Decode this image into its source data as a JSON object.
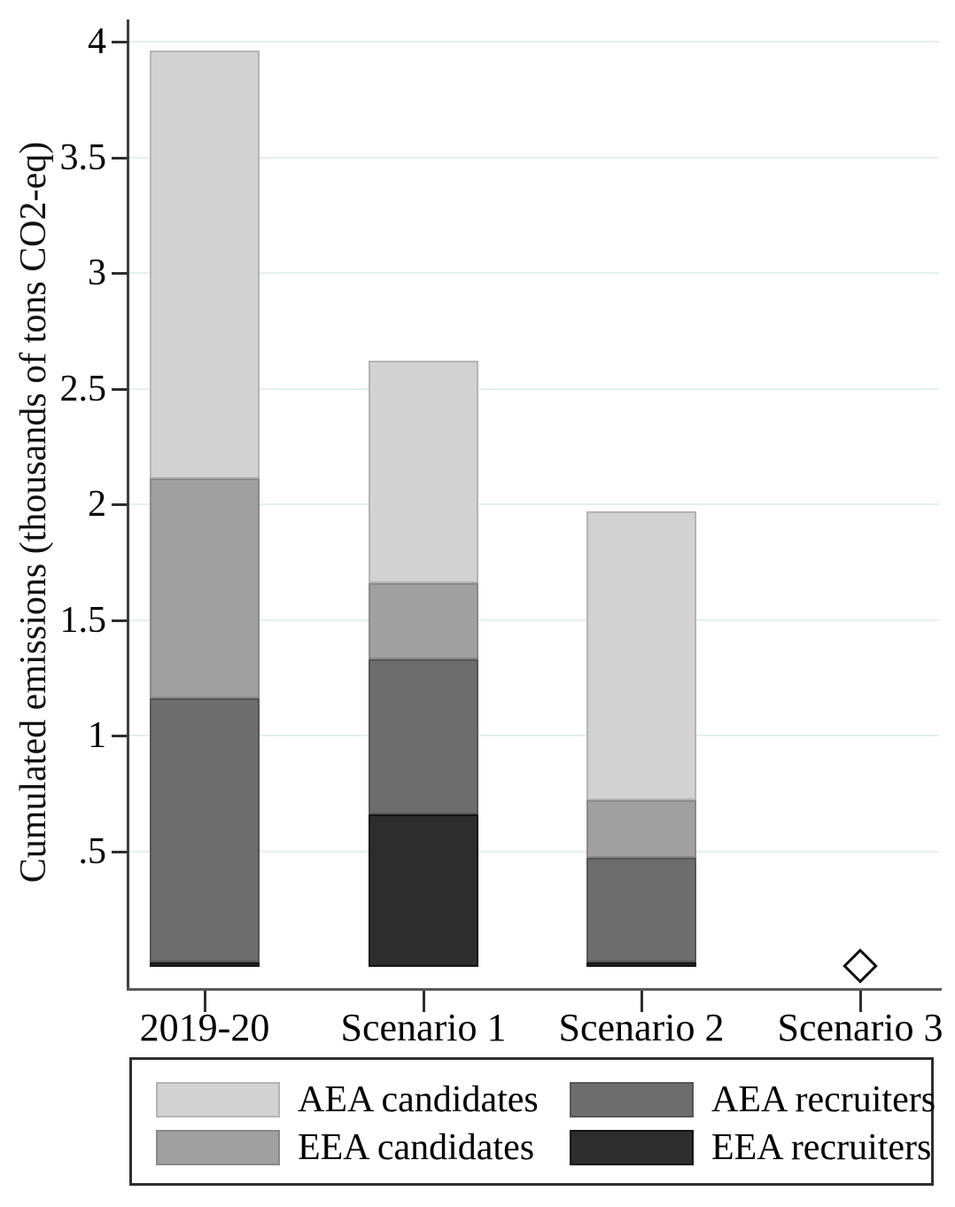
{
  "chart_data": {
    "type": "bar",
    "stacked": true,
    "title": "",
    "xlabel": "",
    "ylabel": "Cumulated emissions (thousands of tons CO2-eq)",
    "categories": [
      "2019-20",
      "Scenario 1",
      "Scenario 2",
      "Scenario 3"
    ],
    "series": [
      {
        "name": "EEA recruiters",
        "color": "#2d2d2d",
        "border": "#141414",
        "values": [
          0.02,
          0.66,
          0.02,
          0
        ]
      },
      {
        "name": "AEA recruiters",
        "color": "#6d6d6d",
        "border": "#565656",
        "values": [
          1.14,
          0.67,
          0.45,
          0
        ]
      },
      {
        "name": "EEA candidates",
        "color": "#a0a0a0",
        "border": "#898989",
        "values": [
          0.95,
          0.33,
          0.25,
          0
        ]
      },
      {
        "name": "AEA candidates",
        "color": "#d2d2d2",
        "border": "#b4b4b4",
        "values": [
          1.85,
          0.96,
          1.25,
          0
        ]
      }
    ],
    "stack_totals": [
      3.96,
      2.62,
      1.97,
      0
    ],
    "marker": {
      "category": "Scenario 3",
      "value": 0.005,
      "shape": "hollow-diamond"
    },
    "yticks": [
      0.5,
      1,
      1.5,
      2,
      2.5,
      3,
      3.5,
      4
    ],
    "ytick_labels": [
      ".5",
      "1",
      "1.5",
      "2",
      "2.5",
      "3",
      "3.5",
      "4"
    ],
    "ylim": [
      0,
      4.18
    ],
    "grid": true,
    "grid_color": "#e2f0ef",
    "legend": {
      "position": "bottom",
      "rows": [
        [
          "AEA candidates",
          "AEA recruiters"
        ],
        [
          "EEA candidates",
          "EEA recruiters"
        ]
      ]
    }
  }
}
